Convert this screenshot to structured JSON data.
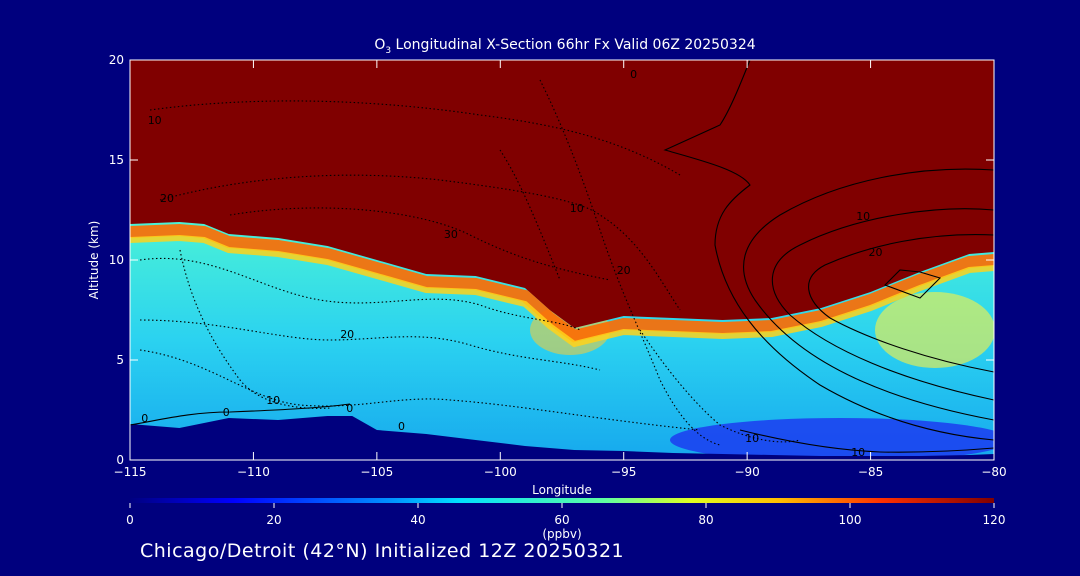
{
  "chart_data": {
    "type": "heatmap",
    "title_species": "O",
    "title_sub": "3",
    "title_rest": " Longitudinal X-Section 66hr  Fx Valid 06Z 20250324",
    "xlabel": "Longitude",
    "ylabel": "Altitude (km)",
    "xlim": [
      -115,
      -80
    ],
    "ylim": [
      0,
      20
    ],
    "x_ticks": [
      -115,
      -110,
      -105,
      -100,
      -95,
      -90,
      -85,
      -80
    ],
    "x_tick_labels": [
      "−115",
      "−110",
      "−105",
      "−100",
      "−95",
      "−90",
      "−85",
      "−80"
    ],
    "y_ticks": [
      0,
      5,
      10,
      15,
      20
    ],
    "y_tick_labels": [
      "0",
      "5",
      "10",
      "15",
      "20"
    ],
    "colorbar": {
      "label": "(ppbv)",
      "range": [
        0,
        120
      ],
      "ticks": [
        0,
        20,
        40,
        60,
        80,
        100,
        120
      ],
      "tick_labels": [
        "0",
        "20",
        "40",
        "60",
        "80",
        "100",
        "120"
      ]
    },
    "ozone_boundary": {
      "description_free": true,
      "longitude": [
        -115,
        -113,
        -112,
        -111,
        -109,
        -107,
        -105,
        -103,
        -101,
        -99,
        -98,
        -97,
        -95,
        -93,
        -91,
        -89,
        -87,
        -85,
        -83,
        -81,
        -80
      ],
      "altitude_120ppb": [
        11.8,
        11.9,
        11.8,
        11.3,
        11.1,
        10.7,
        10.0,
        9.3,
        9.2,
        8.6,
        7.5,
        6.6,
        7.2,
        7.1,
        7.0,
        7.1,
        7.6,
        8.4,
        9.4,
        10.3,
        10.4
      ]
    },
    "surface_mask": {
      "longitude": [
        -115,
        -113,
        -111,
        -109,
        -107,
        -106,
        -105,
        -103,
        -101,
        -99,
        -97,
        -95,
        -93,
        -91,
        -89,
        -87,
        -85,
        -83,
        -81,
        -80
      ],
      "altitude": [
        1.8,
        1.6,
        2.1,
        2.0,
        2.2,
        2.2,
        1.5,
        1.3,
        1.0,
        0.7,
        0.5,
        0.45,
        0.35,
        0.3,
        0.25,
        0.2,
        0.2,
        0.2,
        0.25,
        0.3
      ]
    },
    "contour_labels": [
      {
        "text": "10",
        "x": -114.0,
        "y": 16.8
      },
      {
        "text": "20",
        "x": -113.5,
        "y": 12.9
      },
      {
        "text": "30",
        "x": -102.0,
        "y": 11.1
      },
      {
        "text": "10",
        "x": -96.9,
        "y": 12.4
      },
      {
        "text": "20",
        "x": -95.0,
        "y": 9.3
      },
      {
        "text": "20",
        "x": -106.2,
        "y": 6.1
      },
      {
        "text": "10",
        "x": -109.2,
        "y": 2.8
      },
      {
        "text": "0",
        "x": -114.4,
        "y": 1.9
      },
      {
        "text": "0",
        "x": -111.1,
        "y": 2.2
      },
      {
        "text": "0",
        "x": -106.1,
        "y": 2.4
      },
      {
        "text": "0",
        "x": -104.0,
        "y": 1.5
      },
      {
        "text": "0",
        "x": -94.6,
        "y": 19.1
      },
      {
        "text": "10",
        "x": -85.3,
        "y": 12.0
      },
      {
        "text": "20",
        "x": -84.8,
        "y": 10.2
      },
      {
        "text": "10",
        "x": -89.8,
        "y": 0.9
      },
      {
        "text": "10",
        "x": -85.5,
        "y": 0.2
      }
    ]
  },
  "footer": "Chicago/Detroit (42°N) Initialized 12Z 20250321"
}
